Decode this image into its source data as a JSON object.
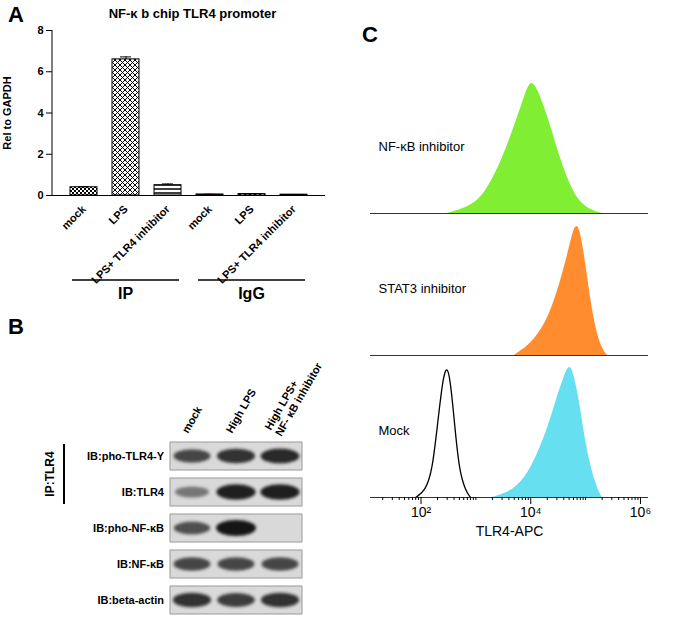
{
  "chart_data": [
    {
      "panel": "A",
      "type": "bar",
      "title": "NF-κ b chip TLR4 promoter",
      "y_label": "Rel to GAPDH",
      "categories": [
        "mock",
        "LPS",
        "LPS+ TLR4 inhibitor",
        "mock",
        "LPS",
        "LPS+ TLR4 inhibitor"
      ],
      "values": [
        0.4,
        6.6,
        0.5,
        0.05,
        0.07,
        0.04
      ],
      "errors": [
        0.02,
        0.12,
        0.06,
        0.01,
        0.01,
        0.01
      ],
      "groups": [
        {
          "label": "IP",
          "size": 3
        },
        {
          "label": "IgG",
          "size": 3
        }
      ],
      "color": "#000000",
      "ylim": [
        0,
        8
      ],
      "yticks": [
        0,
        2,
        4,
        6,
        8
      ]
    },
    {
      "panel": "C",
      "type": "area",
      "x_label": "TLR4-APC",
      "log": "x",
      "xlim": [
        12,
        1400000
      ],
      "xticks": [
        {
          "value": 100,
          "label": "10²"
        },
        {
          "value": 10000,
          "label": "10⁴"
        },
        {
          "value": 1000000,
          "label": "10⁶"
        }
      ],
      "ylim": [
        0,
        100
      ],
      "tick_labels": "x",
      "series": [
        {
          "name": "NF-κB inhibitor",
          "type": "area",
          "color": "#80ee33",
          "x": [
            300,
            800,
            1500,
            3000,
            5000,
            8000,
            10000,
            13000,
            20000,
            35000,
            60000,
            100000,
            200000
          ],
          "values": [
            0,
            5,
            15,
            40,
            65,
            90,
            100,
            95,
            75,
            40,
            15,
            4,
            0
          ]
        },
        {
          "name": "STAT3 inhibitor",
          "type": "area",
          "color": "#ff8c2e",
          "x": [
            5000,
            10000,
            20000,
            35000,
            50000,
            65000,
            80000,
            100000,
            130000,
            180000,
            250000
          ],
          "values": [
            0,
            8,
            25,
            55,
            80,
            100,
            95,
            70,
            35,
            8,
            0
          ]
        },
        {
          "name": "Mock",
          "type": "area",
          "color": "#66e0f0",
          "x": [
            2000,
            5000,
            10000,
            20000,
            30000,
            40000,
            50000,
            60000,
            80000,
            100000,
            150000,
            200000
          ],
          "values": [
            0,
            5,
            20,
            50,
            75,
            90,
            100,
            95,
            70,
            40,
            10,
            0
          ]
        },
        {
          "name": null,
          "type": "line",
          "color": "#000000",
          "x": [
            80,
            120,
            160,
            200,
            250,
            300,
            350,
            420,
            500,
            650,
            800
          ],
          "values": [
            0,
            5,
            20,
            55,
            90,
            100,
            85,
            50,
            20,
            5,
            0
          ]
        }
      ]
    }
  ],
  "blot": {
    "panel": "B",
    "lanes": [
      "mock",
      "High LPS",
      "High LPS+ NF- κB inhibitor"
    ],
    "ip_label": "IP:TLR4",
    "ip_rows": 2,
    "rows": [
      {
        "label": "IB:pho-TLR4-Y",
        "band_intensity": [
          0.75,
          0.85,
          0.9
        ]
      },
      {
        "label": "IB:TLR4",
        "band_intensity": [
          0.5,
          0.95,
          0.95
        ]
      },
      {
        "label": "IB:pho-NF-κB",
        "band_intensity": [
          0.7,
          1.0,
          0
        ]
      },
      {
        "label": "IB:NF-κB",
        "band_intensity": [
          0.75,
          0.75,
          0.75
        ]
      },
      {
        "label": "IB:beta-actin",
        "band_intensity": [
          0.85,
          0.8,
          0.85
        ]
      }
    ]
  }
}
